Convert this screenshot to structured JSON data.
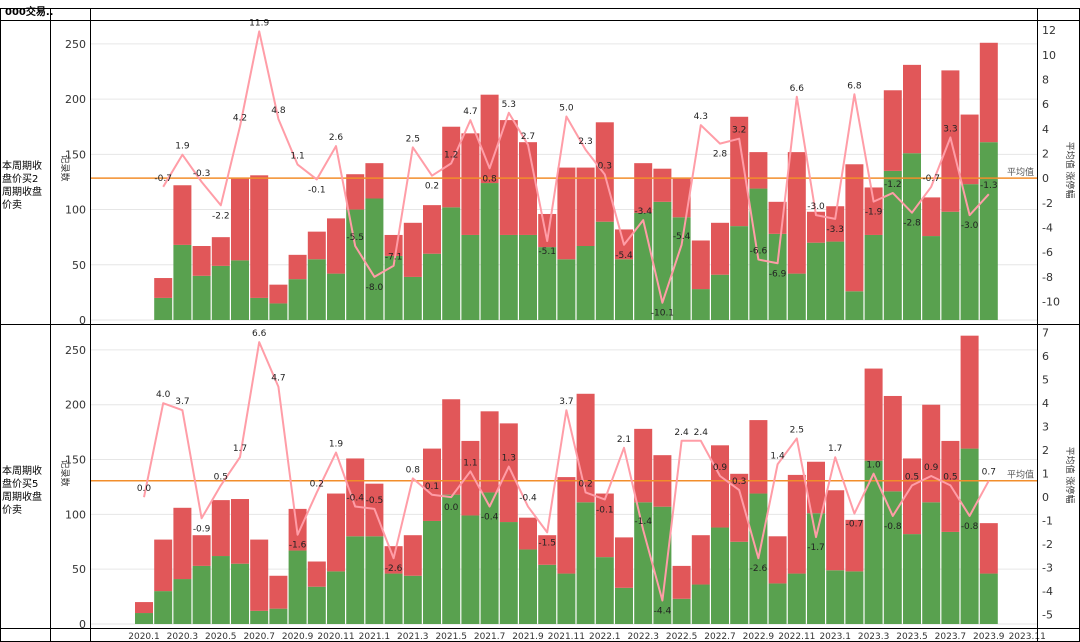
{
  "corner_label": "000交易..",
  "reference_line_label": "平均值",
  "x_axis_ticks": [
    "2020.1",
    "2020.3",
    "2020.5",
    "2020.7",
    "2020.9",
    "2020.11",
    "2021.1",
    "2021.3",
    "2021.5",
    "2021.7",
    "2021.9",
    "2021.11",
    "2022.1",
    "2022.3",
    "2022.5",
    "2022.7",
    "2022.9",
    "2022.11",
    "2023.1",
    "2023.3",
    "2023.5",
    "2023.7",
    "2023.9",
    "2023.11"
  ],
  "colors": {
    "green": "#59a14f",
    "red": "#e15759",
    "line": "#ff9da7",
    "ref": "#f28e2b",
    "grid": "#e6e6e6",
    "border": "#000000"
  },
  "chart_data": [
    {
      "type": "bar",
      "row_label": "本周期收盘价买2周期收盘价卖",
      "left_axis_label": "记录数",
      "right_axis_label": "平均值 涨停幅",
      "left_ticks": [
        0,
        50,
        100,
        150,
        200,
        250
      ],
      "right_ticks": [
        -10,
        -8,
        -6,
        -4,
        -2,
        0,
        2,
        4,
        6,
        8,
        10,
        12
      ],
      "left_range": [
        0,
        268
      ],
      "right_range": [
        -11.5,
        12.5
      ],
      "reference_value": 0,
      "bars": [
        {
          "green": 0,
          "red": 0,
          "avg": null
        },
        {
          "green": 20,
          "red": 18,
          "avg": -0.7
        },
        {
          "green": 68,
          "red": 54,
          "avg": 1.9
        },
        {
          "green": 40,
          "red": 27,
          "avg": -0.3
        },
        {
          "green": 49,
          "red": 26,
          "avg": -2.2
        },
        {
          "green": 54,
          "red": 74,
          "avg": 4.2
        },
        {
          "green": 20,
          "red": 111,
          "avg": 11.9
        },
        {
          "green": 15,
          "red": 17,
          "avg": 4.8
        },
        {
          "green": 37,
          "red": 22,
          "avg": 1.1
        },
        {
          "green": 55,
          "red": 25,
          "avg": -0.1
        },
        {
          "green": 42,
          "red": 50,
          "avg": 2.6
        },
        {
          "green": 100,
          "red": 32,
          "avg": -5.5
        },
        {
          "green": 110,
          "red": 32,
          "avg": -8.0
        },
        {
          "green": 58,
          "red": 19,
          "avg": -7.1
        },
        {
          "green": 39,
          "red": 49,
          "avg": 2.5
        },
        {
          "green": 60,
          "red": 44,
          "avg": 0.2
        },
        {
          "green": 102,
          "red": 73,
          "avg": 1.2
        },
        {
          "green": 77,
          "red": 92,
          "avg": 4.7
        },
        {
          "green": 124,
          "red": 80,
          "avg": 0.8
        },
        {
          "green": 77,
          "red": 104,
          "avg": 5.3
        },
        {
          "green": 77,
          "red": 84,
          "avg": 2.7
        },
        {
          "green": 66,
          "red": 30,
          "avg": -5.1
        },
        {
          "green": 55,
          "red": 83,
          "avg": 5.0
        },
        {
          "green": 67,
          "red": 71,
          "avg": 2.3
        },
        {
          "green": 89,
          "red": 90,
          "avg": 0.3
        },
        {
          "green": 55,
          "red": 27,
          "avg": -5.4
        },
        {
          "green": 97,
          "red": 45,
          "avg": -3.4
        },
        {
          "green": 107,
          "red": 30,
          "avg": -10.1
        },
        {
          "green": 93,
          "red": 35,
          "avg": -5.4
        },
        {
          "green": 28,
          "red": 44,
          "avg": 4.3
        },
        {
          "green": 41,
          "red": 47,
          "avg": 2.8
        },
        {
          "green": 85,
          "red": 99,
          "avg": 3.2
        },
        {
          "green": 119,
          "red": 33,
          "avg": -6.6
        },
        {
          "green": 78,
          "red": 29,
          "avg": -6.9
        },
        {
          "green": 42,
          "red": 110,
          "avg": 6.6
        },
        {
          "green": 70,
          "red": 28,
          "avg": -3.0
        },
        {
          "green": 71,
          "red": 32,
          "avg": -3.3
        },
        {
          "green": 26,
          "red": 115,
          "avg": 6.8
        },
        {
          "green": 77,
          "red": 43,
          "avg": -1.9
        },
        {
          "green": 135,
          "red": 73,
          "avg": -1.2
        },
        {
          "green": 151,
          "red": 80,
          "avg": -2.8
        },
        {
          "green": 76,
          "red": 35,
          "avg": -0.7
        },
        {
          "green": 98,
          "red": 128,
          "avg": 3.3
        },
        {
          "green": 123,
          "red": 63,
          "avg": -3.0
        },
        {
          "green": 161,
          "red": 90,
          "avg": -1.3
        }
      ]
    },
    {
      "type": "bar",
      "row_label": "本周期收盘价买5周期收盘价卖",
      "left_axis_label": "记录数",
      "right_axis_label": "平均值 涨停幅",
      "left_ticks": [
        0,
        50,
        100,
        150,
        200,
        250
      ],
      "right_ticks": [
        -5,
        -4,
        -3,
        -2,
        -1,
        0,
        1,
        2,
        3,
        4,
        5,
        6,
        7
      ],
      "left_range": [
        0,
        270
      ],
      "right_range": [
        -5.4,
        7.2
      ],
      "reference_value": 0.7,
      "bars": [
        {
          "green": 10,
          "red": 10,
          "avg": 0.0
        },
        {
          "green": 30,
          "red": 47,
          "avg": 4.0
        },
        {
          "green": 41,
          "red": 65,
          "avg": 3.7
        },
        {
          "green": 53,
          "red": 28,
          "avg": -0.9
        },
        {
          "green": 62,
          "red": 51,
          "avg": 0.5
        },
        {
          "green": 55,
          "red": 59,
          "avg": 1.7
        },
        {
          "green": 12,
          "red": 65,
          "avg": 6.6
        },
        {
          "green": 14,
          "red": 30,
          "avg": 4.7
        },
        {
          "green": 67,
          "red": 38,
          "avg": -1.6
        },
        {
          "green": 34,
          "red": 23,
          "avg": 0.2
        },
        {
          "green": 48,
          "red": 71,
          "avg": 1.9
        },
        {
          "green": 80,
          "red": 71,
          "avg": -0.4
        },
        {
          "green": 80,
          "red": 48,
          "avg": -0.5
        },
        {
          "green": 46,
          "red": 25,
          "avg": -2.6
        },
        {
          "green": 44,
          "red": 37,
          "avg": 0.8
        },
        {
          "green": 94,
          "red": 66,
          "avg": 0.1
        },
        {
          "green": 118,
          "red": 87,
          "avg": 0.0
        },
        {
          "green": 99,
          "red": 68,
          "avg": 1.1
        },
        {
          "green": 120,
          "red": 74,
          "avg": -0.4
        },
        {
          "green": 93,
          "red": 90,
          "avg": 1.3
        },
        {
          "green": 68,
          "red": 29,
          "avg": -0.4
        },
        {
          "green": 54,
          "red": 27,
          "avg": -1.5
        },
        {
          "green": 46,
          "red": 88,
          "avg": 3.7
        },
        {
          "green": 111,
          "red": 99,
          "avg": 0.2
        },
        {
          "green": 61,
          "red": 58,
          "avg": -0.1
        },
        {
          "green": 33,
          "red": 46,
          "avg": 2.1
        },
        {
          "green": 111,
          "red": 67,
          "avg": -1.4
        },
        {
          "green": 107,
          "red": 47,
          "avg": -4.4
        },
        {
          "green": 23,
          "red": 30,
          "avg": 2.4
        },
        {
          "green": 36,
          "red": 45,
          "avg": 2.4
        },
        {
          "green": 88,
          "red": 75,
          "avg": 0.9
        },
        {
          "green": 75,
          "red": 62,
          "avg": 0.3
        },
        {
          "green": 119,
          "red": 67,
          "avg": -2.6
        },
        {
          "green": 37,
          "red": 43,
          "avg": 1.4
        },
        {
          "green": 46,
          "red": 90,
          "avg": 2.5
        },
        {
          "green": 101,
          "red": 47,
          "avg": -1.7
        },
        {
          "green": 49,
          "red": 73,
          "avg": 1.7
        },
        {
          "green": 48,
          "red": 47,
          "avg": -0.7
        },
        {
          "green": 149,
          "red": 84,
          "avg": 1.0
        },
        {
          "green": 121,
          "red": 87,
          "avg": -0.8
        },
        {
          "green": 82,
          "red": 69,
          "avg": 0.5
        },
        {
          "green": 111,
          "red": 89,
          "avg": 0.9
        },
        {
          "green": 84,
          "red": 83,
          "avg": 0.5
        },
        {
          "green": 160,
          "red": 103,
          "avg": -0.8
        },
        {
          "green": 46,
          "red": 46,
          "avg": 0.7
        }
      ]
    }
  ]
}
